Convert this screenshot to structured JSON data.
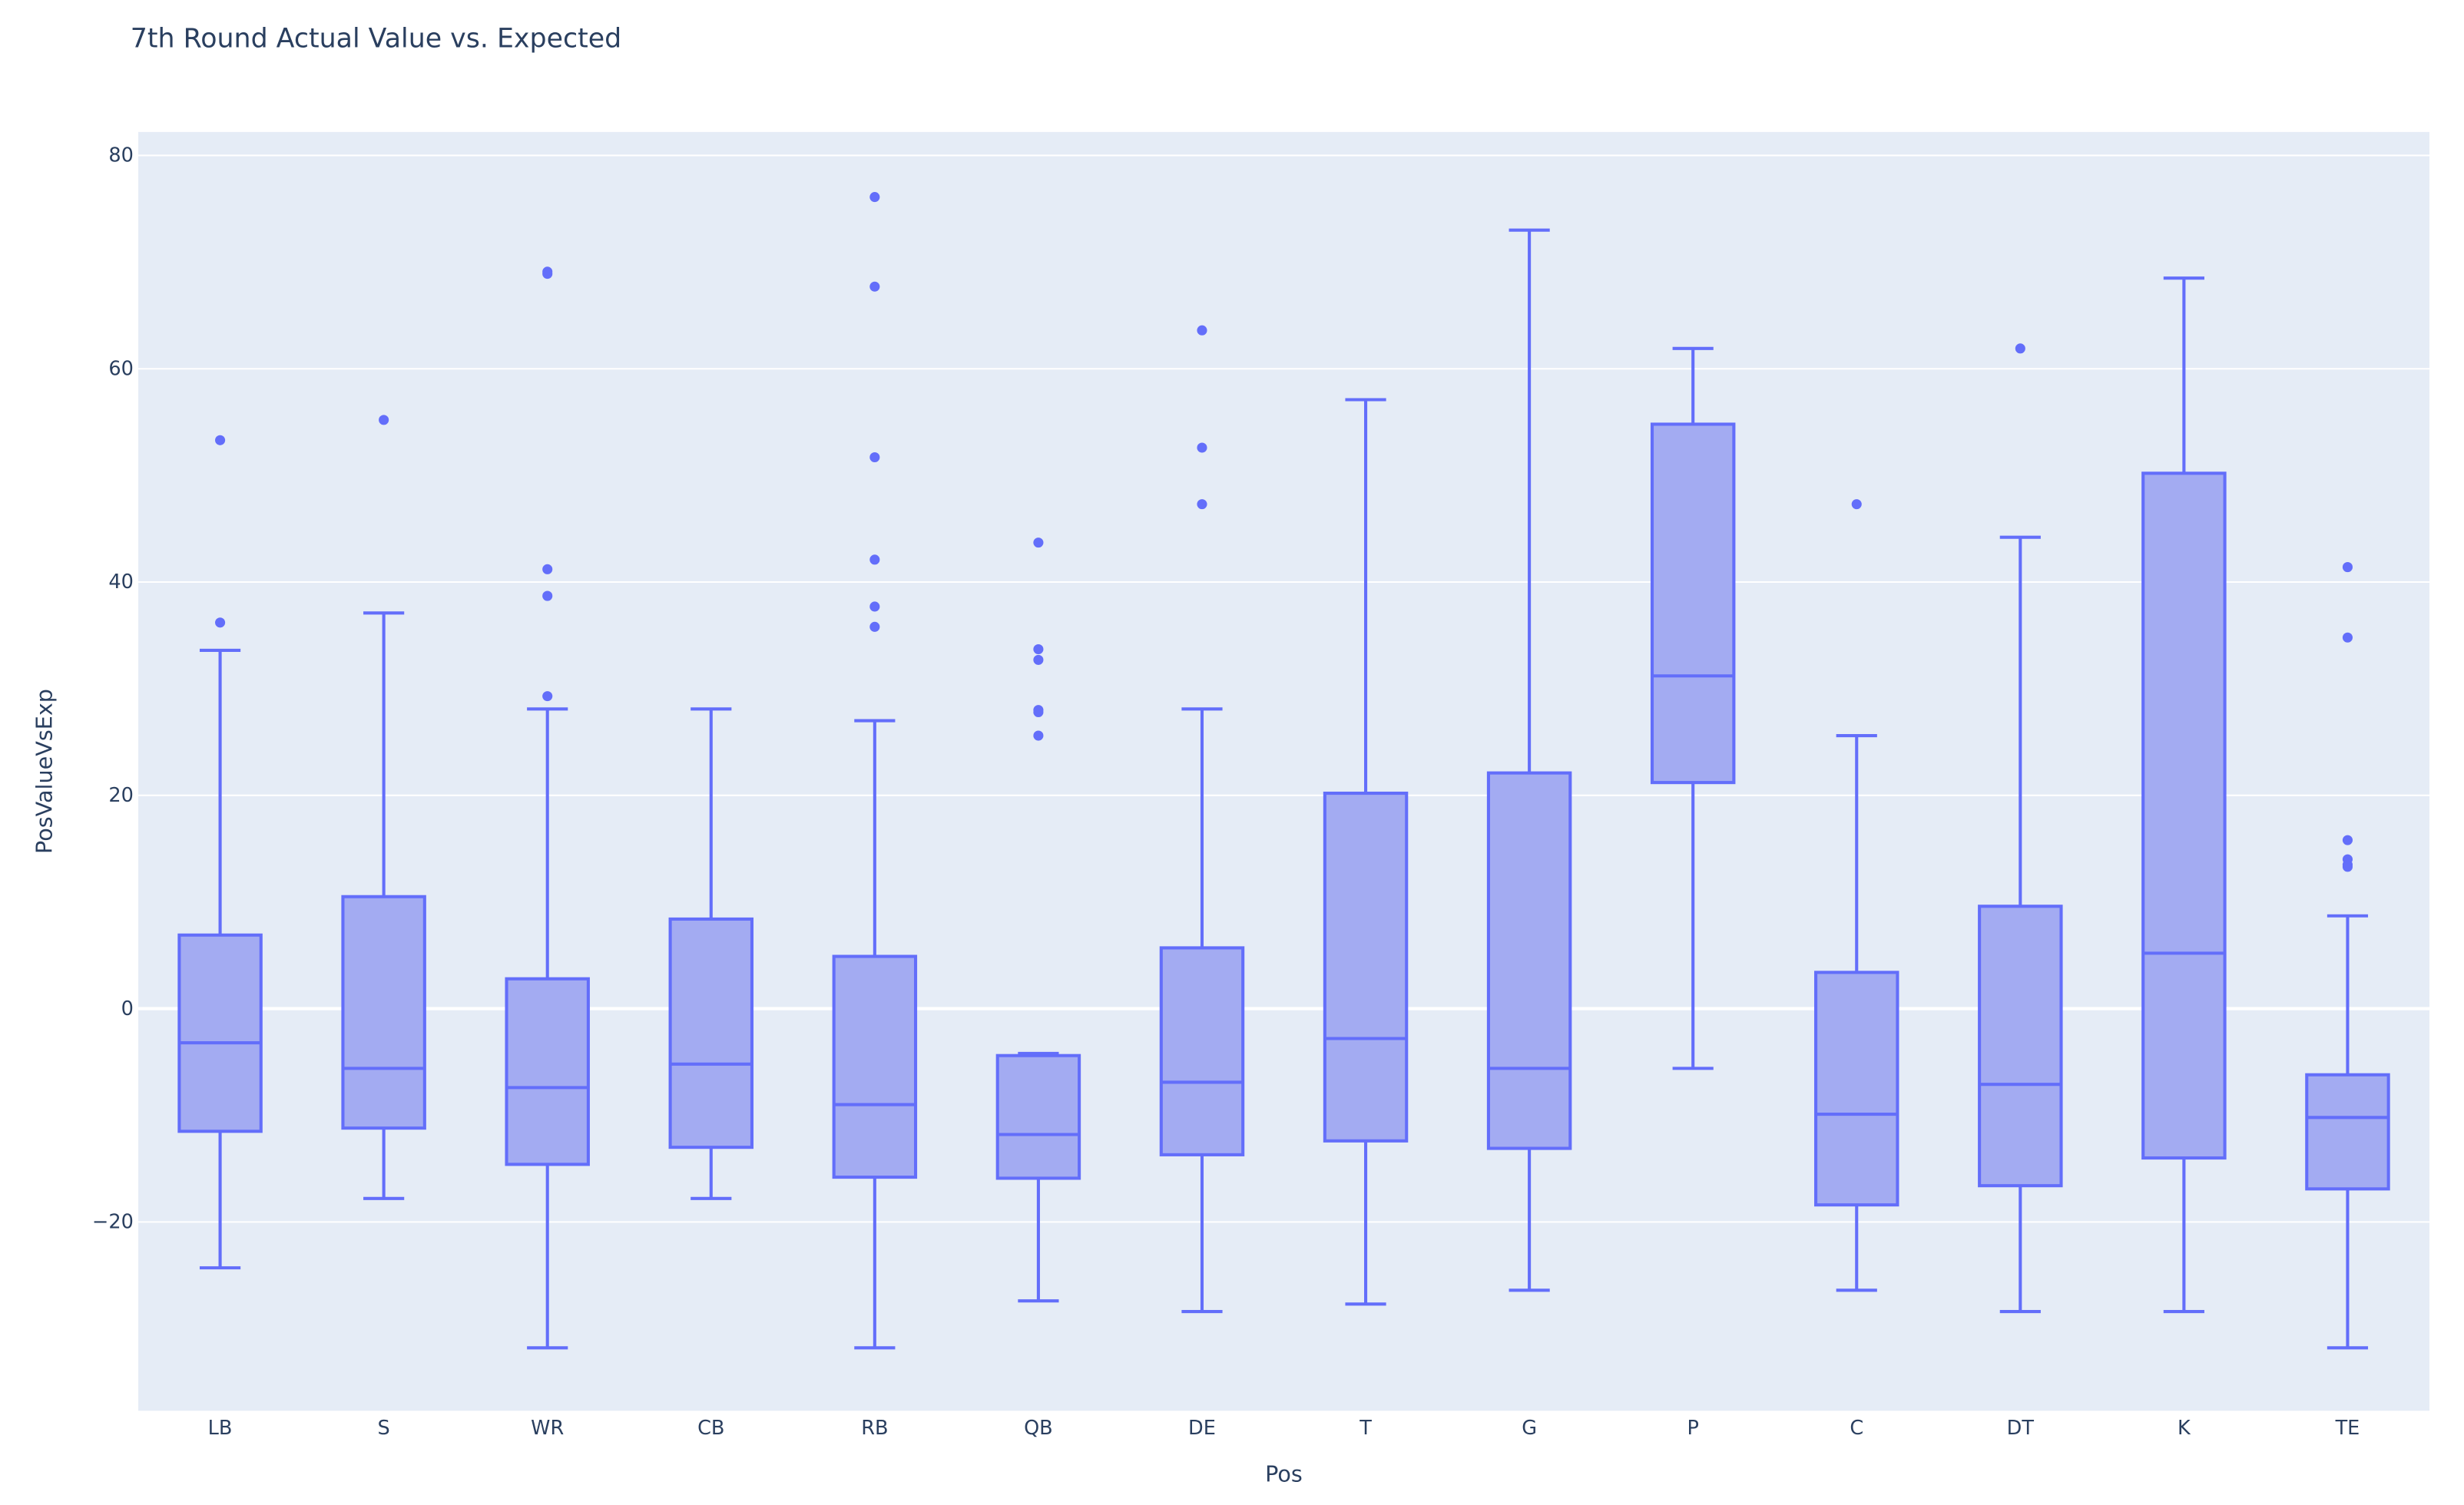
{
  "chart_data": {
    "type": "box",
    "title": "7th Round Actual Value vs. Expected",
    "xlabel": "Pos",
    "ylabel": "PosValueVsExp",
    "ylim": [
      -37.7,
      82.2
    ],
    "yticks": [
      -20,
      0,
      20,
      40,
      60,
      80
    ],
    "ytick_labels": [
      "−20",
      "0",
      "20",
      "40",
      "60",
      "80"
    ],
    "grid": true,
    "colors": {
      "box_line": "#636efa",
      "box_fill": "#a3abf2",
      "plot_bg": "#e5ecf6",
      "grid": "#ffffff",
      "text": "#2a3f5f"
    },
    "categories": [
      "LB",
      "S",
      "WR",
      "CB",
      "RB",
      "QB",
      "DE",
      "T",
      "G",
      "P",
      "C",
      "DT",
      "K",
      "TE"
    ],
    "boxes": [
      {
        "pos": "LB",
        "lower": -24.3,
        "q1": -11.5,
        "median": -3.2,
        "q3": 6.9,
        "upper": 33.6,
        "outliers": [
          53.3,
          36.2
        ]
      },
      {
        "pos": "S",
        "lower": -17.8,
        "q1": -11.2,
        "median": -5.6,
        "q3": 10.5,
        "upper": 37.1,
        "outliers": [
          55.2
        ]
      },
      {
        "pos": "WR",
        "lower": -31.8,
        "q1": -14.6,
        "median": -7.4,
        "q3": 2.8,
        "upper": 28.1,
        "outliers": [
          69.1,
          68.9,
          41.2,
          38.7,
          29.3
        ]
      },
      {
        "pos": "CB",
        "lower": -17.8,
        "q1": -13.0,
        "median": -5.2,
        "q3": 8.4,
        "upper": 28.1,
        "outliers": []
      },
      {
        "pos": "RB",
        "lower": -31.8,
        "q1": -15.8,
        "median": -9.0,
        "q3": 4.9,
        "upper": 27.0,
        "outliers": [
          76.1,
          67.7,
          51.7,
          42.1,
          37.7,
          35.8
        ]
      },
      {
        "pos": "QB",
        "lower": -27.4,
        "q1": -15.9,
        "median": -11.8,
        "q3": -4.4,
        "upper": -4.2,
        "outliers": [
          43.7,
          33.7,
          32.7,
          28.0,
          27.8,
          25.6
        ]
      },
      {
        "pos": "DE",
        "lower": -28.4,
        "q1": -13.7,
        "median": -6.9,
        "q3": 5.7,
        "upper": 28.1,
        "outliers": [
          63.6,
          52.6,
          47.3
        ]
      },
      {
        "pos": "T",
        "lower": -27.7,
        "q1": -12.4,
        "median": -2.8,
        "q3": 20.2,
        "upper": 57.1,
        "outliers": []
      },
      {
        "pos": "G",
        "lower": -26.4,
        "q1": -13.1,
        "median": -5.6,
        "q3": 22.1,
        "upper": 73.0,
        "outliers": []
      },
      {
        "pos": "P",
        "lower": -5.6,
        "q1": 21.2,
        "median": 31.2,
        "q3": 54.8,
        "upper": 61.9,
        "outliers": []
      },
      {
        "pos": "C",
        "lower": -26.4,
        "q1": -18.4,
        "median": -9.9,
        "q3": 3.4,
        "upper": 25.6,
        "outliers": [
          47.3
        ]
      },
      {
        "pos": "DT",
        "lower": -28.4,
        "q1": -16.6,
        "median": -7.1,
        "q3": 9.6,
        "upper": 44.2,
        "outliers": [
          61.9
        ]
      },
      {
        "pos": "K",
        "lower": -28.4,
        "q1": -14.0,
        "median": 5.2,
        "q3": 50.2,
        "upper": 68.5,
        "outliers": []
      },
      {
        "pos": "TE",
        "lower": -31.8,
        "q1": -16.9,
        "median": -10.2,
        "q3": -6.2,
        "upper": 8.7,
        "outliers": [
          41.4,
          34.8,
          15.8,
          14.0,
          13.5,
          13.3
        ]
      }
    ]
  }
}
